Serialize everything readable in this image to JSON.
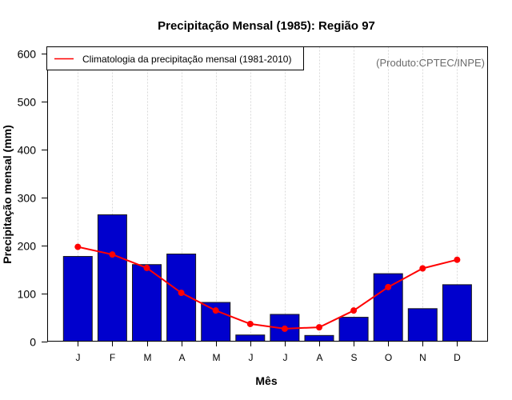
{
  "chart_data": {
    "type": "bar",
    "title": "Precipitação Mensal (1985): Região 97",
    "xlabel": "Mês",
    "ylabel": "Precipitação mensal (mm)",
    "ylim": [
      0,
      600
    ],
    "yticks": [
      0,
      100,
      200,
      300,
      400,
      500,
      600
    ],
    "categories": [
      "J",
      "F",
      "M",
      "A",
      "M",
      "J",
      "J",
      "A",
      "S",
      "O",
      "N",
      "D"
    ],
    "grid": "vertical dotted at each month",
    "series": [
      {
        "name": "Precipitação mensal (1985)",
        "type": "bar",
        "color": "#0000CD",
        "values": [
          177,
          264,
          160,
          182,
          81,
          13,
          56,
          12,
          50,
          141,
          68,
          118
        ]
      },
      {
        "name": "Climatologia da precipitação mensal (1981-2010)",
        "type": "line",
        "color": "#FF0000",
        "values": [
          197,
          181,
          153,
          101,
          64,
          36,
          26,
          29,
          64,
          113,
          152,
          170
        ]
      }
    ],
    "legend": {
      "position": "top-left",
      "entries": [
        "Climatologia da precipitação mensal (1981-2010)"
      ]
    },
    "annotation": "(Produto:CPTEC/INPE)"
  }
}
